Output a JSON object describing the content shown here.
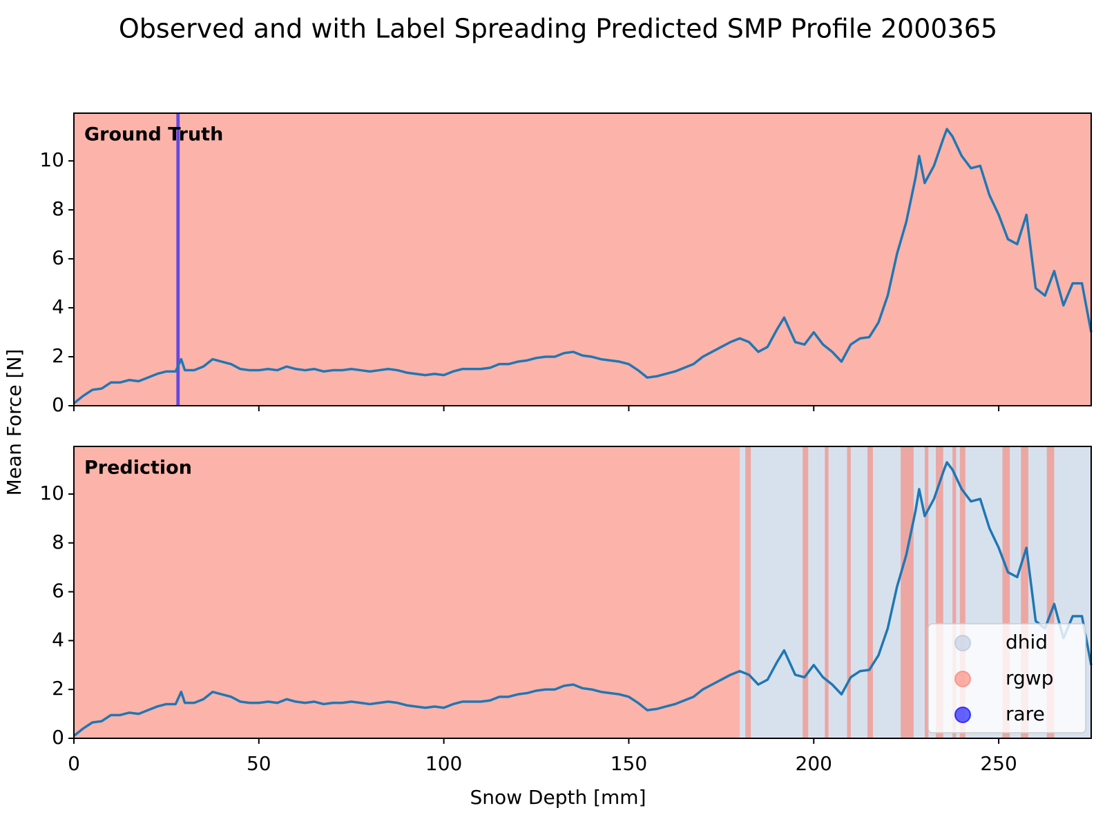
{
  "chart_data": {
    "type": "line",
    "title": "Observed and with Label Spreading Predicted SMP Profile 2000365",
    "xlabel": "Snow Depth [mm]",
    "ylabel": "Mean Force [N]",
    "color": "#1f77b4",
    "x": [
      0,
      2.5,
      5,
      7.5,
      10,
      12.5,
      15,
      17.5,
      20,
      22.5,
      25,
      27.5,
      29,
      30,
      32.5,
      35,
      37.5,
      40,
      42.5,
      45,
      47.5,
      50,
      52.5,
      55,
      57.5,
      60,
      62.5,
      65,
      67.5,
      70,
      72.5,
      75,
      77.5,
      80,
      82.5,
      85,
      87.5,
      90,
      92.5,
      95,
      97.5,
      100,
      102.5,
      105,
      107.5,
      110,
      112.5,
      115,
      117.5,
      120,
      122.5,
      125,
      127.5,
      130,
      132.5,
      135,
      137.5,
      140,
      142.5,
      145,
      147.5,
      150,
      152.5,
      155,
      157.5,
      160,
      162.5,
      165,
      167.5,
      170,
      172.5,
      175,
      177.5,
      180,
      182.5,
      185,
      187.5,
      190,
      192,
      195,
      197.5,
      200,
      202.5,
      205,
      207.5,
      210,
      212.5,
      215,
      217.5,
      220,
      222.5,
      225,
      227.5,
      228.5,
      230,
      232.5,
      235,
      236,
      237.5,
      240,
      242.5,
      245,
      247.5,
      250,
      252.5,
      255,
      257.5,
      260,
      262.5,
      265,
      267.5,
      270,
      272.5,
      275
    ],
    "values": [
      0.1,
      0.4,
      0.65,
      0.7,
      0.95,
      0.95,
      1.05,
      1.0,
      1.15,
      1.3,
      1.4,
      1.4,
      1.9,
      1.45,
      1.45,
      1.6,
      1.9,
      1.8,
      1.7,
      1.5,
      1.45,
      1.45,
      1.5,
      1.45,
      1.6,
      1.5,
      1.45,
      1.5,
      1.4,
      1.45,
      1.45,
      1.5,
      1.45,
      1.4,
      1.45,
      1.5,
      1.45,
      1.35,
      1.3,
      1.25,
      1.3,
      1.25,
      1.4,
      1.5,
      1.5,
      1.5,
      1.55,
      1.7,
      1.7,
      1.8,
      1.85,
      1.95,
      2.0,
      2.0,
      2.15,
      2.2,
      2.05,
      2.0,
      1.9,
      1.85,
      1.8,
      1.7,
      1.45,
      1.15,
      1.2,
      1.3,
      1.4,
      1.55,
      1.7,
      2.0,
      2.2,
      2.4,
      2.6,
      2.75,
      2.6,
      2.2,
      2.4,
      3.1,
      3.6,
      2.6,
      2.5,
      3.0,
      2.5,
      2.2,
      1.8,
      2.5,
      2.75,
      2.8,
      3.4,
      4.5,
      6.2,
      7.5,
      9.3,
      10.2,
      9.1,
      9.8,
      10.9,
      11.3,
      11.0,
      10.2,
      9.7,
      9.8,
      8.6,
      7.8,
      6.8,
      6.6,
      7.8,
      4.8,
      4.5,
      5.5,
      4.1,
      5.0,
      5.0,
      3.0
    ],
    "xlim": [
      0,
      275
    ],
    "xticks": [
      0,
      50,
      100,
      150,
      200,
      250
    ],
    "ylim": [
      0,
      11.95
    ],
    "yticks": [
      0,
      2,
      4,
      6,
      8,
      10
    ],
    "legend_position": "lower right",
    "legend": [
      {
        "name": "dhid",
        "color": "#b0c4de"
      },
      {
        "name": "rgwp",
        "color": "#fa8072"
      },
      {
        "name": "rare",
        "color": "#0000ff"
      }
    ],
    "panels": [
      {
        "label": "Ground Truth",
        "bands": [
          [],
          [
            [
              0,
              275
            ]
          ],
          [
            [
              27.7,
              28.6
            ]
          ]
        ]
      },
      {
        "label": "Prediction",
        "bands": [
          [
            [
              180,
              275
            ]
          ],
          [
            [
              0,
              180
            ],
            [
              181.5,
              183
            ],
            [
              197,
              198.5
            ],
            [
              203,
              204
            ],
            [
              209,
              210
            ],
            [
              214.5,
              216
            ],
            [
              223.5,
              227
            ],
            [
              230,
              231
            ],
            [
              233,
              235
            ],
            [
              237.5,
              238.5
            ],
            [
              239.5,
              241
            ],
            [
              251,
              253
            ],
            [
              256,
              258
            ],
            [
              263,
              265
            ]
          ],
          []
        ]
      }
    ]
  }
}
